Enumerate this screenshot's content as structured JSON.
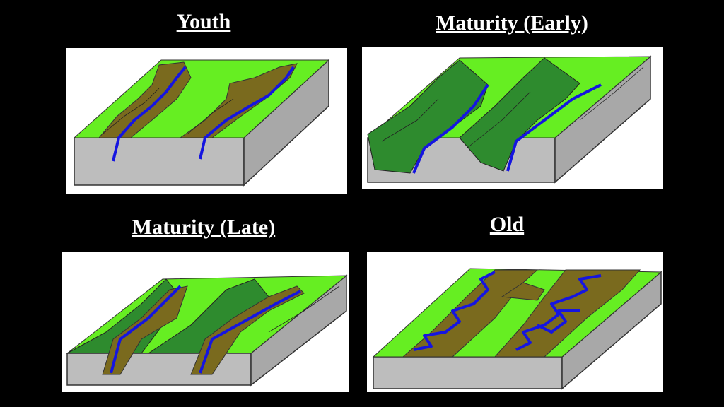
{
  "panels": [
    {
      "title": "Youth"
    },
    {
      "title": "Maturity (Early)"
    },
    {
      "title": "Maturity (Late)"
    },
    {
      "title": "Old"
    }
  ]
}
